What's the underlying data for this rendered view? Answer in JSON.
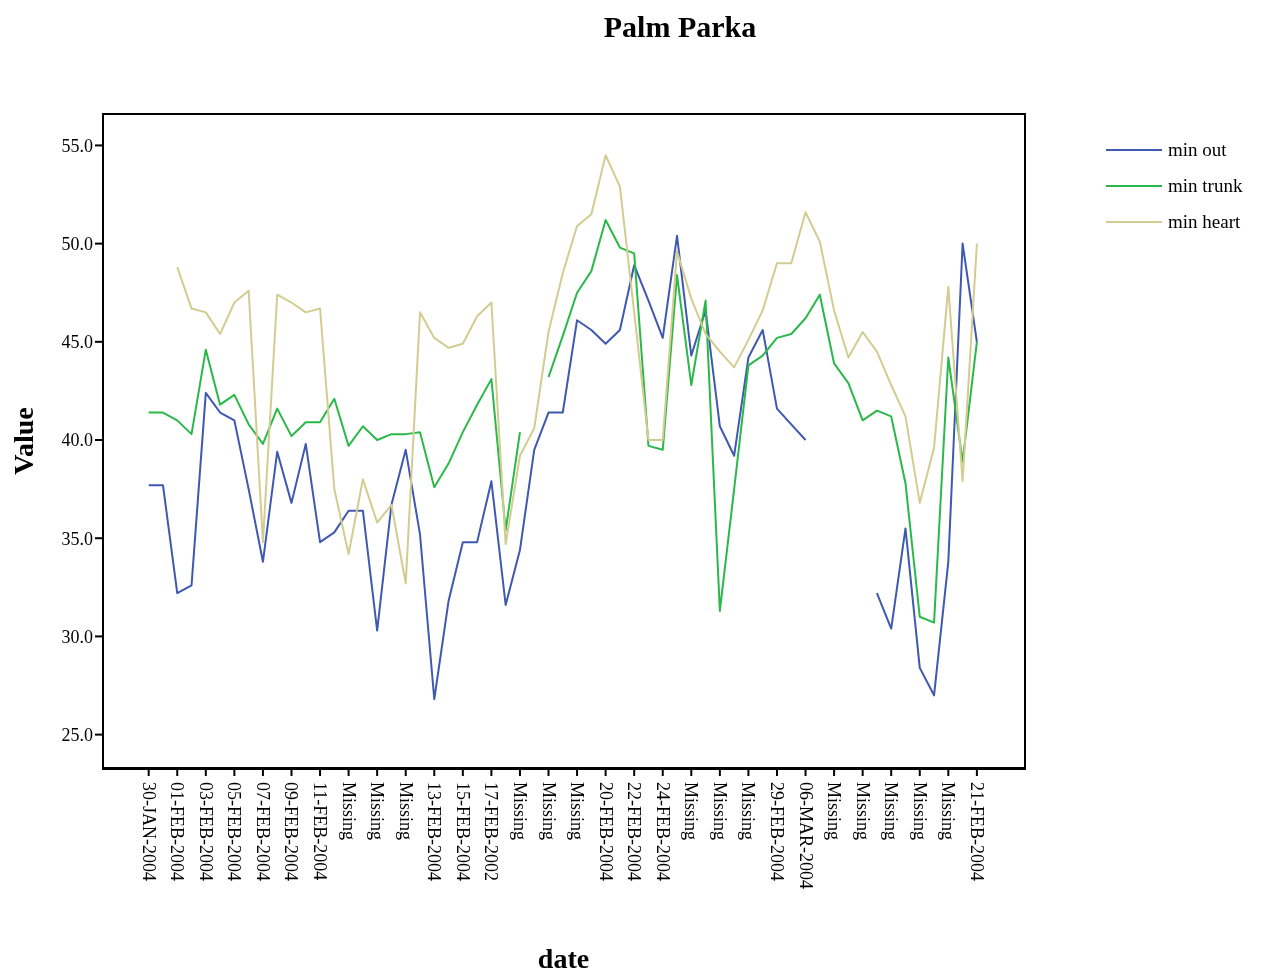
{
  "chart_data": {
    "type": "line",
    "title": "Palm Parka",
    "xlabel": "date",
    "ylabel": "Value",
    "categories": [
      "30-JAN-2004",
      null,
      "01-FEB-2004",
      null,
      "03-FEB-2004",
      null,
      "05-FEB-2004",
      null,
      "07-FEB-2004",
      null,
      "09-FEB-2004",
      null,
      "11-FEB-2004",
      null,
      "Missing",
      null,
      "Missing",
      null,
      "Missing",
      null,
      "13-FEB-2004",
      null,
      "15-FEB-2004",
      null,
      "17-FEB-2002",
      null,
      "Missing",
      null,
      "Missing",
      null,
      "Missing",
      null,
      "20-FEB-2004",
      null,
      "22-FEB-2004",
      null,
      "24-FEB-2004",
      null,
      "Missing",
      null,
      "Missing",
      null,
      "Missing",
      null,
      "29-FEB-2004",
      null,
      "06-MAR-2004",
      null,
      "Missing",
      null,
      "Missing",
      null,
      "Missing",
      null,
      "Missing",
      null,
      "Missing",
      null,
      "21-FEB-2004"
    ],
    "series": [
      {
        "name": "min out",
        "color": "#3f58b0",
        "values": [
          37.7,
          37.7,
          32.2,
          32.6,
          42.4,
          41.4,
          41.0,
          37.5,
          33.8,
          39.4,
          36.8,
          39.8,
          34.8,
          35.3,
          36.4,
          36.4,
          30.3,
          36.7,
          39.5,
          35.2,
          26.8,
          31.8,
          34.8,
          34.8,
          37.9,
          31.6,
          34.4,
          39.5,
          41.4,
          41.4,
          46.1,
          45.6,
          44.9,
          45.6,
          48.9,
          47.1,
          45.2,
          50.4,
          44.3,
          46.6,
          40.7,
          39.2,
          44.2,
          45.6,
          41.6,
          40.8,
          40.0,
          null,
          null,
          null,
          null,
          32.2,
          30.4,
          35.5,
          28.4,
          27.0,
          33.8,
          50.0,
          45.0
        ]
      },
      {
        "name": "min trunk",
        "color": "#2bb84a",
        "values": [
          41.4,
          41.4,
          41.0,
          40.3,
          44.6,
          41.8,
          42.3,
          40.8,
          39.8,
          41.6,
          40.2,
          40.9,
          40.9,
          42.1,
          39.7,
          40.7,
          40.0,
          40.3,
          40.3,
          40.4,
          37.6,
          38.8,
          40.4,
          41.8,
          43.1,
          35.4,
          40.4,
          null,
          43.2,
          45.3,
          47.5,
          48.6,
          51.2,
          49.8,
          49.5,
          39.7,
          39.5,
          48.4,
          42.8,
          47.1,
          31.3,
          37.5,
          43.8,
          44.3,
          45.2,
          45.4,
          46.2,
          47.4,
          43.9,
          42.9,
          41.0,
          41.5,
          41.2,
          37.8,
          31.0,
          30.7,
          44.2,
          38.9,
          45.0
        ]
      },
      {
        "name": "min heart",
        "color": "#d3cc90",
        "values": [
          null,
          null,
          48.8,
          46.7,
          46.5,
          45.4,
          47.0,
          47.6,
          34.8,
          47.4,
          47.0,
          46.5,
          46.7,
          37.5,
          34.2,
          38.0,
          35.8,
          36.7,
          32.7,
          46.5,
          45.2,
          44.7,
          44.9,
          46.3,
          47.0,
          34.7,
          39.2,
          40.6,
          45.5,
          48.5,
          50.9,
          51.5,
          54.5,
          52.9,
          46.5,
          40.0,
          40.0,
          49.6,
          47.2,
          45.4,
          44.5,
          43.7,
          45.1,
          46.6,
          49.0,
          49.0,
          51.6,
          50.1,
          46.6,
          44.2,
          45.5,
          44.5,
          42.8,
          41.2,
          36.8,
          39.6,
          47.8,
          37.9,
          50.0
        ]
      }
    ],
    "ylim": [
      23.3,
      56.6
    ],
    "yticks": [
      {
        "value": 25,
        "label": "25.0"
      },
      {
        "value": 30,
        "label": "30.0"
      },
      {
        "value": 35,
        "label": "35.0"
      },
      {
        "value": 40,
        "label": "40.0"
      },
      {
        "value": 45,
        "label": "45.0"
      },
      {
        "value": 50,
        "label": "50.0"
      },
      {
        "value": 55,
        "label": "55.0"
      }
    ],
    "legend": "top right",
    "grid": false,
    "marker": "none",
    "line_style": "solid"
  }
}
